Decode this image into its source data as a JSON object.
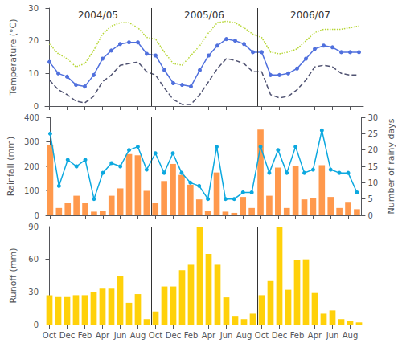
{
  "chart_data": [
    {
      "type": "line",
      "ylabel": "Temperature (°C)",
      "categories": [
        "Oct",
        null,
        "Dec",
        null,
        "Feb",
        null,
        "Apr",
        null,
        "Jun",
        null,
        "Aug",
        null,
        "Oct",
        null,
        "Dec",
        null,
        "Feb",
        null,
        "Apr",
        null,
        "Jun",
        null,
        "Aug",
        null,
        "Oct",
        null,
        "Dec",
        null,
        "Feb",
        null,
        "Apr",
        null,
        "Jun",
        null,
        "Aug",
        null
      ],
      "series": [
        {
          "marker": "circle",
          "line_style": "solid",
          "values": [
            13.5,
            10.0,
            9.0,
            6.5,
            6.0,
            9.5,
            14.5,
            17.0,
            19.0,
            19.5,
            19.5,
            16.0,
            15.5,
            11.0,
            7.0,
            6.5,
            6.0,
            11.0,
            15.5,
            18.5,
            20.5,
            20.0,
            19.0,
            16.5,
            16.5,
            9.5,
            9.5,
            10.0,
            11.5,
            14.5,
            17.5,
            18.5,
            18.0,
            16.5,
            16.5,
            16.5
          ]
        },
        {
          "marker": "none",
          "line_style": "dotted",
          "values": [
            19.0,
            16.0,
            14.5,
            12.0,
            13.0,
            17.0,
            22.0,
            24.5,
            25.5,
            25.5,
            24.0,
            21.0,
            20.5,
            16.5,
            13.0,
            12.5,
            15.5,
            18.5,
            22.5,
            25.5,
            26.0,
            25.5,
            24.0,
            22.0,
            21.0,
            16.5,
            16.0,
            16.5,
            17.5,
            20.0,
            22.5,
            23.5,
            23.5,
            23.5,
            24.0,
            24.5
          ]
        },
        {
          "marker": "none",
          "line_style": "dashed",
          "values": [
            8.0,
            5.0,
            3.5,
            1.5,
            1.0,
            3.0,
            7.5,
            9.5,
            12.5,
            13.0,
            13.5,
            10.5,
            9.5,
            5.5,
            2.0,
            0.5,
            0.5,
            3.5,
            7.5,
            11.5,
            14.5,
            14.0,
            13.0,
            10.5,
            10.5,
            3.5,
            2.5,
            3.0,
            5.0,
            8.0,
            12.0,
            12.5,
            12.0,
            10.0,
            9.5,
            9.5
          ]
        }
      ],
      "ylim": [
        0,
        30
      ],
      "yticks": [
        0,
        10,
        20,
        30
      ],
      "annotations": [
        "2004/05",
        "2005/06",
        "2006/07"
      ],
      "tick_labels": "y",
      "grid": false
    },
    {
      "type": "bar",
      "ylabel": "Rainfall (mm)",
      "y2label": "Number of rainy days",
      "categories": [
        "Oct",
        null,
        "Dec",
        null,
        "Feb",
        null,
        "Apr",
        null,
        "Jun",
        null,
        "Aug",
        null,
        "Oct",
        null,
        "Dec",
        null,
        "Feb",
        null,
        "Apr",
        null,
        "Jun",
        null,
        "Aug",
        null,
        "Oct",
        null,
        "Dec",
        null,
        "Feb",
        null,
        "Apr",
        null,
        "Jun",
        null,
        "Aug",
        null
      ],
      "series": [
        {
          "type": "bar",
          "values": [
            285,
            30,
            50,
            80,
            50,
            15,
            20,
            80,
            110,
            250,
            245,
            100,
            50,
            140,
            210,
            165,
            125,
            65,
            20,
            175,
            15,
            10,
            75,
            30,
            350,
            80,
            195,
            30,
            200,
            65,
            70,
            205,
            75,
            30,
            55,
            25
          ]
        },
        {
          "type": "line",
          "axis": "y2",
          "marker": "circle",
          "line_style": "solid",
          "values": [
            25,
            9,
            17,
            15,
            17,
            5,
            13,
            16,
            15,
            20,
            21,
            14,
            19,
            13,
            19,
            13,
            10,
            9,
            5,
            21,
            5,
            5,
            7,
            7,
            21,
            13,
            20,
            13,
            21,
            13,
            14,
            26,
            14,
            13,
            13,
            7
          ]
        }
      ],
      "ylim": [
        0,
        400
      ],
      "yticks": [
        0,
        100,
        200,
        300,
        400
      ],
      "y2lim": [
        0,
        30
      ],
      "y2ticks": [
        0,
        5,
        10,
        15,
        20,
        25,
        30
      ],
      "tick_labels": "y",
      "grid": false
    },
    {
      "type": "bar",
      "ylabel": "Runoff (mm)",
      "categories": [
        "Oct",
        null,
        "Dec",
        null,
        "Feb",
        null,
        "Apr",
        null,
        "Jun",
        null,
        "Aug",
        null,
        "Oct",
        null,
        "Dec",
        null,
        "Feb",
        null,
        "Apr",
        null,
        "Jun",
        null,
        "Aug",
        null,
        "Oct",
        null,
        "Dec",
        null,
        "Feb",
        null,
        "Apr",
        null,
        "Jun",
        null,
        "Aug",
        null
      ],
      "values": [
        27,
        26,
        26,
        27,
        27,
        30,
        33,
        33,
        45,
        20,
        28,
        5,
        12,
        35,
        35,
        50,
        55,
        90,
        65,
        55,
        25,
        8,
        5,
        10,
        27,
        40,
        90,
        32,
        59,
        60,
        29,
        10,
        13,
        5,
        3,
        2
      ],
      "ylim": [
        0,
        90
      ],
      "yticks": [
        0,
        30,
        60,
        90
      ],
      "grid": false
    }
  ]
}
